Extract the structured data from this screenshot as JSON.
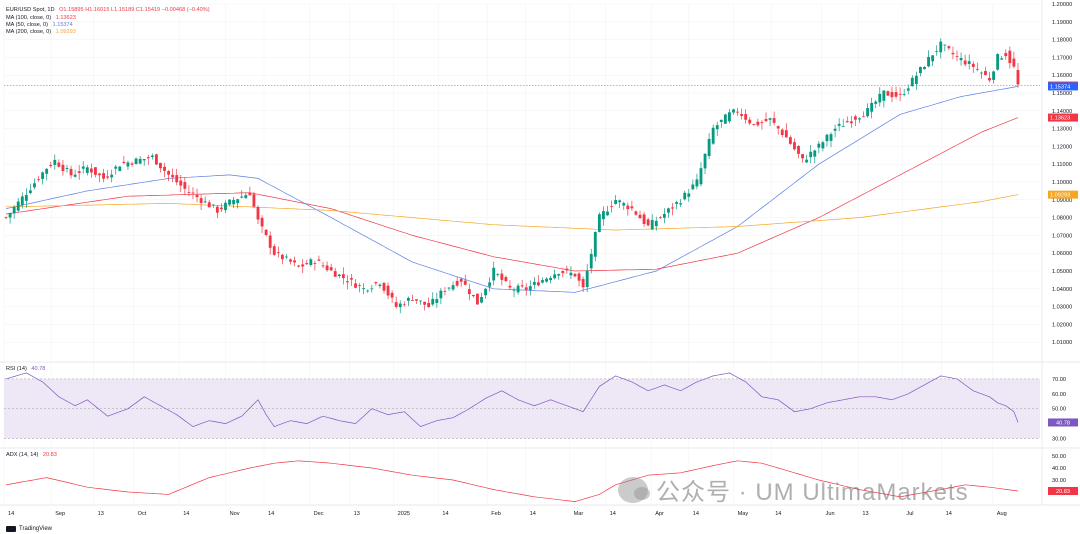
{
  "legend": {
    "symbol": "EUR/USD Spot, 1D",
    "ohlc": "O1.15895 H1.16015 L1.15189 C1.15419 −0.00468 (−0.40%)",
    "ma100": {
      "label": "MA (100, close, 0)",
      "value": "1.13623"
    },
    "ma50": {
      "label": "MA (50, close, 0)",
      "value": "1.15374"
    },
    "ma200": {
      "label": "MA (200, close, 0)",
      "value": "1.09293"
    }
  },
  "colors": {
    "up": "#089981",
    "down": "#f23645",
    "ma100": "#f23645",
    "ma50": "#5b7ee5",
    "ma200": "#f6a623",
    "rsi": "#7e57c2",
    "adx": "#f23645",
    "rsiBand": "#ede7f6"
  },
  "price_tags": [
    {
      "value": "1.15419",
      "price": 1.1542,
      "color": "#f23645"
    },
    {
      "value": "1.15374",
      "price": 1.1537,
      "color": "#2962ff"
    },
    {
      "value": "1.13623",
      "price": 1.1362,
      "color": "#f23645"
    },
    {
      "value": "1.09293",
      "price": 1.0929,
      "color": "#f6a623"
    }
  ],
  "rsi_pane": {
    "title": "RSI (14)",
    "value": "40.78",
    "ticks": [
      "70.00",
      "60.00",
      "50.00",
      "40.00",
      "30.00"
    ],
    "tick_values": [
      70,
      60,
      50,
      40,
      30
    ],
    "band": [
      30,
      70
    ],
    "mid": 50
  },
  "adx_pane": {
    "title": "ADX (14, 14)",
    "value": "20.83",
    "ticks": [
      "50.00",
      "40.00",
      "30.00",
      "20.00"
    ],
    "tick_values": [
      50,
      40,
      30,
      20
    ]
  },
  "x_axis": {
    "labels": [
      {
        "text": "14",
        "pos": 0.0
      },
      {
        "text": "Sep",
        "pos": 0.059
      },
      {
        "text": "13",
        "pos": 0.112
      },
      {
        "text": "Oct",
        "pos": 0.162
      },
      {
        "text": "14",
        "pos": 0.219
      },
      {
        "text": "Nov",
        "pos": 0.277
      },
      {
        "text": "14",
        "pos": 0.325
      },
      {
        "text": "Dec",
        "pos": 0.382
      },
      {
        "text": "13",
        "pos": 0.432
      },
      {
        "text": "2025",
        "pos": 0.487
      },
      {
        "text": "14",
        "pos": 0.543
      },
      {
        "text": "Feb",
        "pos": 0.604
      },
      {
        "text": "14",
        "pos": 0.652
      },
      {
        "text": "Mar",
        "pos": 0.707
      },
      {
        "text": "14",
        "pos": 0.752
      },
      {
        "text": "Apr",
        "pos": 0.809
      },
      {
        "text": "14",
        "pos": 0.856
      },
      {
        "text": "May",
        "pos": 0.912
      },
      {
        "text": "14",
        "pos": 0.959
      },
      {
        "text": "Jun",
        "pos": 1.022
      },
      {
        "text": "13",
        "pos": 1.068
      },
      {
        "text": "Jul",
        "pos": 1.123
      },
      {
        "text": "14",
        "pos": 1.172
      },
      {
        "text": "Aug",
        "pos": 1.236
      }
    ]
  },
  "watermark": "公众号 · UM UltimaMarkets",
  "brand": "TradingView",
  "chart_data": {
    "type": "line",
    "title": "EUR/USD Spot, 1D",
    "ylim": [
      1.0,
      1.2
    ],
    "y_ticks": [
      1.2,
      1.19,
      1.18,
      1.17,
      1.16,
      1.15,
      1.14,
      1.13,
      1.12,
      1.11,
      1.1,
      1.09,
      1.08,
      1.07,
      1.06,
      1.05,
      1.04,
      1.03,
      1.02,
      1.01
    ],
    "current_price_line": 1.1542,
    "close_anchors": [
      [
        0,
        1.08
      ],
      [
        5,
        1.094
      ],
      [
        10,
        1.108
      ],
      [
        12,
        1.112
      ],
      [
        16,
        1.104
      ],
      [
        20,
        1.108
      ],
      [
        24,
        1.102
      ],
      [
        28,
        1.11
      ],
      [
        32,
        1.112
      ],
      [
        36,
        1.114
      ],
      [
        40,
        1.104
      ],
      [
        44,
        1.096
      ],
      [
        48,
        1.09
      ],
      [
        52,
        1.084
      ],
      [
        56,
        1.09
      ],
      [
        60,
        1.094
      ],
      [
        62,
        1.078
      ],
      [
        66,
        1.06
      ],
      [
        70,
        1.055
      ],
      [
        72,
        1.052
      ],
      [
        76,
        1.056
      ],
      [
        80,
        1.05
      ],
      [
        84,
        1.045
      ],
      [
        88,
        1.04
      ],
      [
        92,
        1.044
      ],
      [
        96,
        1.03
      ],
      [
        100,
        1.035
      ],
      [
        104,
        1.03
      ],
      [
        108,
        1.04
      ],
      [
        112,
        1.045
      ],
      [
        116,
        1.032
      ],
      [
        120,
        1.05
      ],
      [
        124,
        1.04
      ],
      [
        128,
        1.04
      ],
      [
        132,
        1.045
      ],
      [
        136,
        1.05
      ],
      [
        140,
        1.048
      ],
      [
        142,
        1.04
      ],
      [
        146,
        1.08
      ],
      [
        150,
        1.09
      ],
      [
        154,
        1.085
      ],
      [
        158,
        1.075
      ],
      [
        162,
        1.082
      ],
      [
        166,
        1.09
      ],
      [
        170,
        1.1
      ],
      [
        174,
        1.13
      ],
      [
        178,
        1.138
      ],
      [
        180,
        1.14
      ],
      [
        184,
        1.132
      ],
      [
        188,
        1.135
      ],
      [
        192,
        1.125
      ],
      [
        196,
        1.112
      ],
      [
        200,
        1.12
      ],
      [
        204,
        1.13
      ],
      [
        208,
        1.135
      ],
      [
        212,
        1.14
      ],
      [
        216,
        1.15
      ],
      [
        220,
        1.148
      ],
      [
        224,
        1.16
      ],
      [
        228,
        1.172
      ],
      [
        230,
        1.177
      ],
      [
        234,
        1.17
      ],
      [
        238,
        1.165
      ],
      [
        242,
        1.158
      ],
      [
        244,
        1.17
      ],
      [
        246,
        1.172
      ],
      [
        248,
        1.164
      ],
      [
        249,
        1.1542
      ]
    ],
    "series": [
      {
        "name": "MA (50, close, 0)",
        "anchors": [
          [
            0,
            1.085
          ],
          [
            20,
            1.095
          ],
          [
            40,
            1.102
          ],
          [
            55,
            1.104
          ],
          [
            62,
            1.102
          ],
          [
            80,
            1.08
          ],
          [
            100,
            1.055
          ],
          [
            120,
            1.04
          ],
          [
            140,
            1.038
          ],
          [
            160,
            1.05
          ],
          [
            180,
            1.075
          ],
          [
            200,
            1.11
          ],
          [
            220,
            1.138
          ],
          [
            235,
            1.148
          ],
          [
            249,
            1.1537
          ]
        ]
      },
      {
        "name": "MA (100, close, 0)",
        "anchors": [
          [
            0,
            1.082
          ],
          [
            30,
            1.092
          ],
          [
            60,
            1.094
          ],
          [
            80,
            1.085
          ],
          [
            100,
            1.07
          ],
          [
            120,
            1.058
          ],
          [
            140,
            1.05
          ],
          [
            160,
            1.051
          ],
          [
            180,
            1.06
          ],
          [
            200,
            1.08
          ],
          [
            220,
            1.104
          ],
          [
            240,
            1.128
          ],
          [
            249,
            1.1362
          ]
        ]
      },
      {
        "name": "MA (200, close, 0)",
        "anchors": [
          [
            0,
            1.086
          ],
          [
            40,
            1.088
          ],
          [
            80,
            1.084
          ],
          [
            120,
            1.076
          ],
          [
            150,
            1.073
          ],
          [
            180,
            1.075
          ],
          [
            210,
            1.08
          ],
          [
            240,
            1.089
          ],
          [
            249,
            1.0929
          ]
        ]
      }
    ],
    "rsi_anchors": [
      [
        0,
        70
      ],
      [
        5,
        74
      ],
      [
        9,
        68
      ],
      [
        13,
        58
      ],
      [
        17,
        52
      ],
      [
        20,
        56
      ],
      [
        25,
        45
      ],
      [
        30,
        50
      ],
      [
        34,
        58
      ],
      [
        38,
        52
      ],
      [
        42,
        46
      ],
      [
        46,
        38
      ],
      [
        50,
        42
      ],
      [
        54,
        40
      ],
      [
        58,
        45
      ],
      [
        62,
        56
      ],
      [
        64,
        46
      ],
      [
        66,
        38
      ],
      [
        70,
        42
      ],
      [
        74,
        40
      ],
      [
        78,
        45
      ],
      [
        82,
        42
      ],
      [
        86,
        40
      ],
      [
        90,
        50
      ],
      [
        94,
        46
      ],
      [
        98,
        48
      ],
      [
        102,
        38
      ],
      [
        106,
        42
      ],
      [
        110,
        44
      ],
      [
        114,
        50
      ],
      [
        118,
        57
      ],
      [
        122,
        62
      ],
      [
        126,
        56
      ],
      [
        130,
        52
      ],
      [
        134,
        56
      ],
      [
        138,
        52
      ],
      [
        142,
        48
      ],
      [
        146,
        65
      ],
      [
        150,
        72
      ],
      [
        154,
        68
      ],
      [
        158,
        62
      ],
      [
        162,
        66
      ],
      [
        166,
        62
      ],
      [
        170,
        68
      ],
      [
        174,
        72
      ],
      [
        178,
        74
      ],
      [
        182,
        68
      ],
      [
        186,
        58
      ],
      [
        190,
        56
      ],
      [
        194,
        48
      ],
      [
        198,
        50
      ],
      [
        202,
        54
      ],
      [
        206,
        56
      ],
      [
        210,
        58
      ],
      [
        214,
        58
      ],
      [
        218,
        56
      ],
      [
        222,
        60
      ],
      [
        226,
        66
      ],
      [
        230,
        72
      ],
      [
        234,
        70
      ],
      [
        238,
        62
      ],
      [
        242,
        58
      ],
      [
        244,
        54
      ],
      [
        246,
        52
      ],
      [
        248,
        48
      ],
      [
        249,
        40.8
      ]
    ],
    "adx_anchors": [
      [
        0,
        26
      ],
      [
        10,
        32
      ],
      [
        20,
        24
      ],
      [
        30,
        20
      ],
      [
        40,
        18
      ],
      [
        50,
        32
      ],
      [
        60,
        40
      ],
      [
        66,
        44
      ],
      [
        72,
        46
      ],
      [
        80,
        44
      ],
      [
        90,
        40
      ],
      [
        100,
        34
      ],
      [
        110,
        30
      ],
      [
        120,
        22
      ],
      [
        130,
        16
      ],
      [
        140,
        12
      ],
      [
        146,
        18
      ],
      [
        150,
        26
      ],
      [
        158,
        34
      ],
      [
        166,
        36
      ],
      [
        174,
        42
      ],
      [
        180,
        46
      ],
      [
        186,
        44
      ],
      [
        192,
        38
      ],
      [
        200,
        30
      ],
      [
        210,
        22
      ],
      [
        220,
        16
      ],
      [
        230,
        22
      ],
      [
        236,
        26
      ],
      [
        242,
        24
      ],
      [
        249,
        20.8
      ]
    ]
  }
}
